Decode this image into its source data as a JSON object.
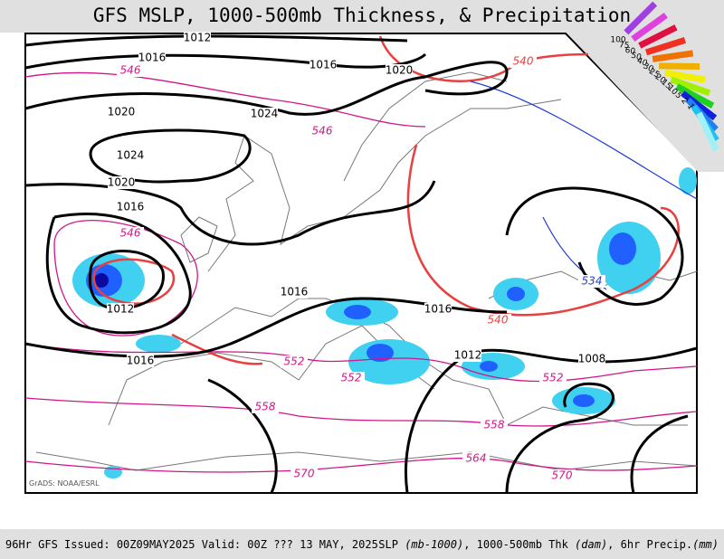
{
  "title": "GFS MSLP, 1000-500mb Thickness, & Precipitation",
  "footer": {
    "left": "96Hr GFS Issued: 00Z09MAY2025 Valid: 00Z ??? 13 MAY, 2025",
    "right": [
      "SLP ",
      "(mb-1000)",
      ", 1000-500mb Thk ",
      "(dam)",
      ", 6hr Precip.",
      "(mm)"
    ]
  },
  "credit": "GrADS: NOAA/ESRL",
  "legend": [
    "100",
    "75",
    "60",
    "50",
    "40",
    "30",
    "25",
    "20",
    "15",
    "10",
    "5",
    "2",
    "1"
  ],
  "isobar_labels": [
    "1012",
    "1016",
    "1016",
    "1020",
    "1020",
    "1024",
    "1024",
    "1020",
    "1016",
    "1016",
    "1012",
    "1016",
    "1012",
    "1008",
    "1016"
  ],
  "thickness_labels": [
    "546",
    "546",
    "546",
    "552",
    "552",
    "552",
    "558",
    "558",
    "564",
    "570",
    "570"
  ],
  "red_labels": [
    "540",
    "540"
  ],
  "blue_labels": [
    "534"
  ]
}
